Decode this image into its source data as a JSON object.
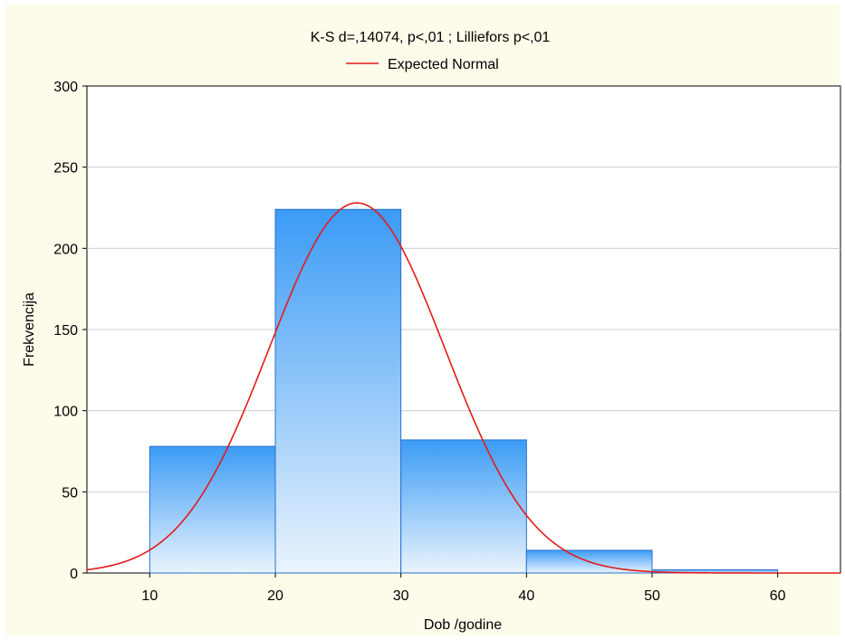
{
  "chart_data": {
    "type": "bar",
    "title": "K-S d=,14074, p<,01 ; Lilliefors p<,01",
    "xlabel": "Dob /godine",
    "ylabel": "Frekvencija",
    "xlim": [
      5,
      65
    ],
    "ylim": [
      0,
      300
    ],
    "xticks": [
      10,
      20,
      30,
      40,
      50,
      60
    ],
    "yticks": [
      0,
      50,
      100,
      150,
      200,
      250,
      300
    ],
    "grid": true,
    "legend": {
      "position": "top-center",
      "entries": [
        "Expected Normal"
      ]
    },
    "bins": [
      {
        "from": 10,
        "to": 20,
        "value": 78
      },
      {
        "from": 20,
        "to": 30,
        "value": 224
      },
      {
        "from": 30,
        "to": 40,
        "value": 82
      },
      {
        "from": 40,
        "to": 50,
        "value": 14
      },
      {
        "from": 50,
        "to": 60,
        "value": 2
      }
    ],
    "expected_normal": {
      "name": "Expected Normal",
      "mean": 26.5,
      "sd": 7.0,
      "peak": 228
    },
    "colors": {
      "bar_top": "#3b9bf5",
      "bar_bottom": "#eaf4fd",
      "bar_stroke": "#2a6fd1",
      "curve": "#e31a1c",
      "background": "#fdfbe9",
      "grid": "#cfcfcf"
    }
  }
}
